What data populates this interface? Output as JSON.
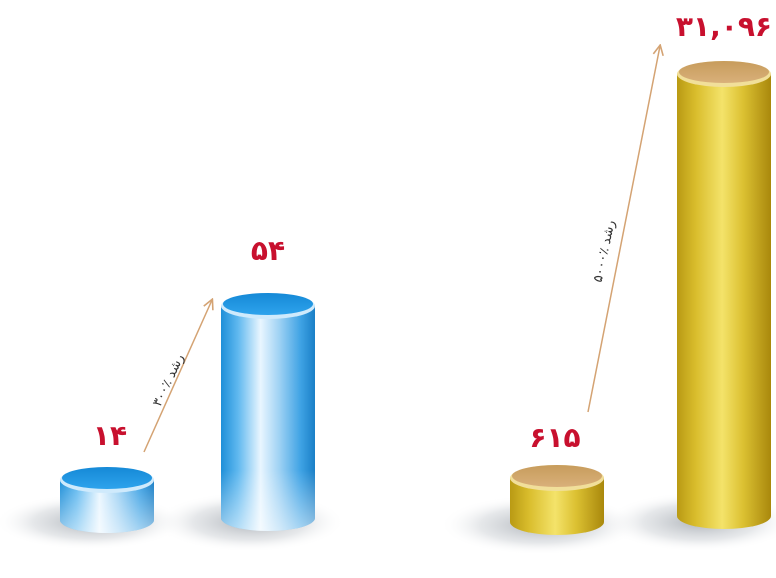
{
  "chart_data": [
    {
      "type": "bar",
      "style": "3d-cylinder",
      "color": "#2a9be0",
      "values": [
        14,
        54
      ],
      "value_labels": [
        "۱۴",
        "۵۴"
      ],
      "growth_label": "۳۰۰٪ رشد",
      "growth_percent": 300
    },
    {
      "type": "bar",
      "style": "3d-cylinder",
      "color": "#d8b92a",
      "values": [
        615,
        31096
      ],
      "value_labels": [
        "۶۱۵",
        "۳۱,۰۹۶"
      ],
      "growth_label": "۵۰۰۰٪ رشد",
      "growth_percent": 5000
    }
  ],
  "colors": {
    "value_text": "#c8102e",
    "arrow": "#d4a373"
  }
}
